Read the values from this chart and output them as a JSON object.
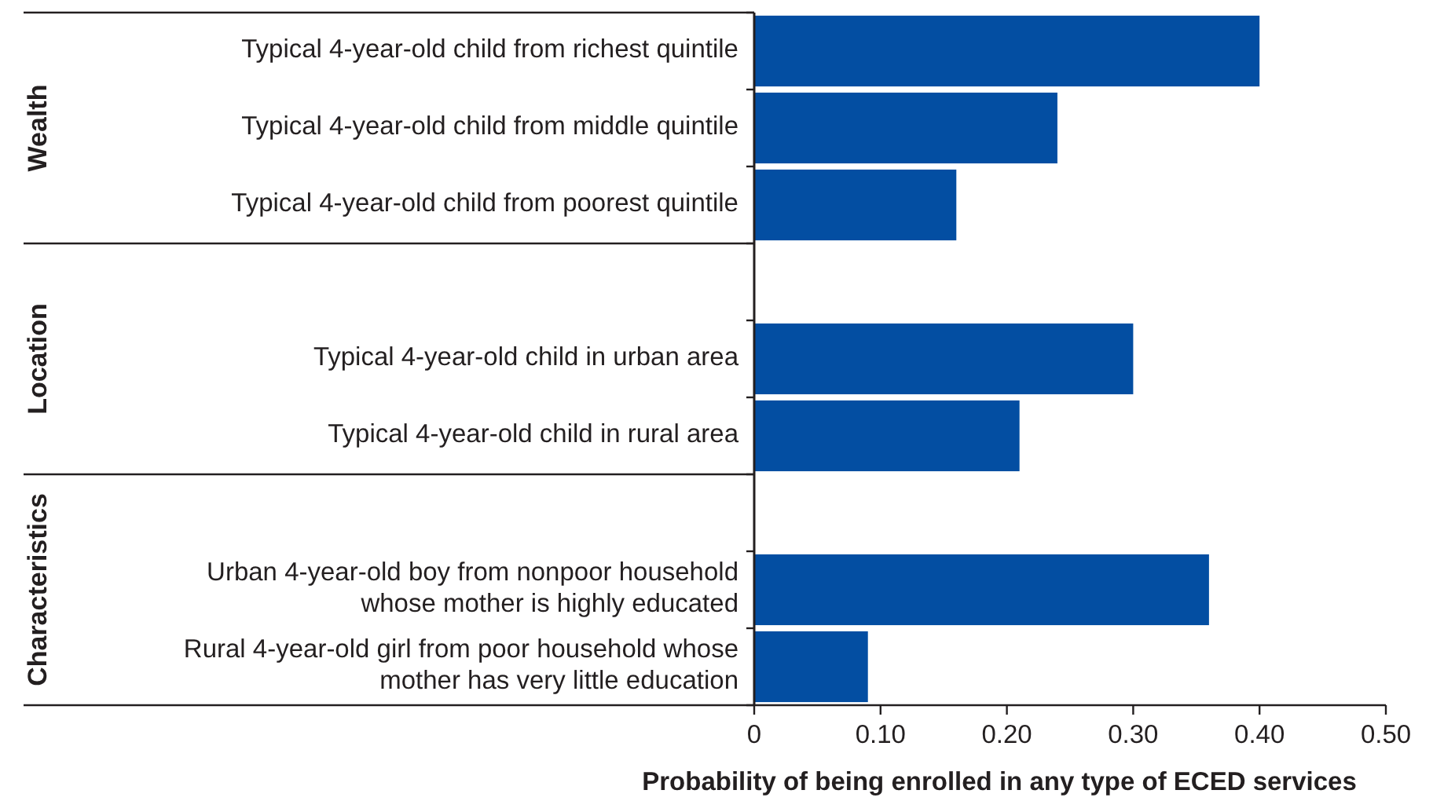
{
  "chart_data": {
    "type": "bar",
    "orientation": "horizontal",
    "xlabel": "Probability of being enrolled in any type of ECED services",
    "categories": [
      "Typical 4-year-old child from richest quintile",
      "Typical 4-year-old child from middle quintile",
      "Typical 4-year-old child from poorest quintile",
      null,
      "Typical 4-year-old child in urban area",
      "Typical 4-year-old child in rural area",
      null,
      "Urban 4-year-old boy from nonpoor household\nwhose mother is highly educated",
      "Rural 4-year-old girl from poor household whose\nmother has very little education"
    ],
    "values": [
      0.4,
      0.24,
      0.16,
      null,
      0.3,
      0.21,
      null,
      0.36,
      0.09
    ],
    "color": "#034ea2",
    "xlim": [
      0,
      0.5
    ],
    "xticks": [
      0,
      {
        "value": 0.1,
        "label": "0.10"
      },
      {
        "value": 0.2,
        "label": "0.20"
      },
      {
        "value": 0.3,
        "label": "0.30"
      },
      {
        "value": 0.4,
        "label": "0.40"
      },
      {
        "value": 0.5,
        "label": "0.50"
      }
    ],
    "annotations": [
      "Wealth",
      "Location",
      "Characteristics"
    ]
  }
}
